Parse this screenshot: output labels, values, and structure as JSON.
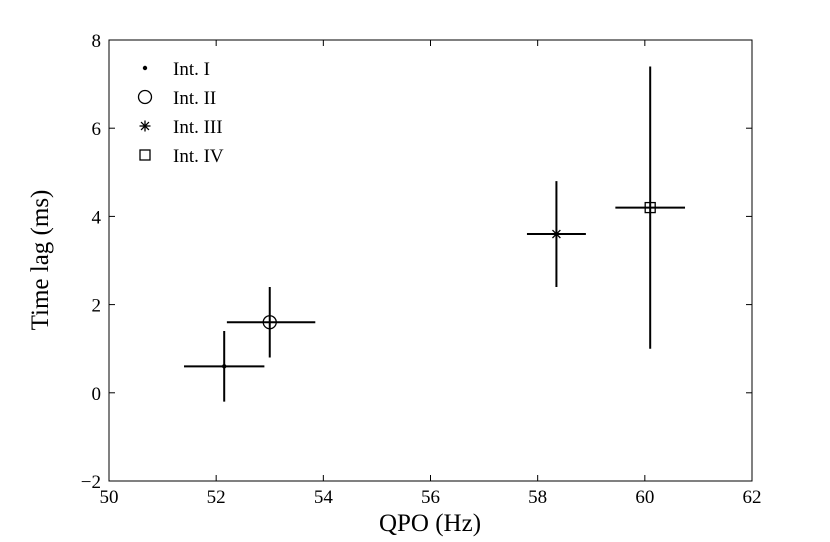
{
  "chart_data": {
    "type": "scatter",
    "title": "",
    "xlabel": "QPO (Hz)",
    "ylabel": "Time lag (ms)",
    "xlim": [
      50,
      62
    ],
    "ylim": [
      -2,
      8
    ],
    "x_ticks": [
      50,
      52,
      54,
      56,
      58,
      60,
      62
    ],
    "y_ticks": [
      -2,
      0,
      2,
      4,
      6,
      8
    ],
    "x_tick_labels": [
      "50",
      "52",
      "54",
      "56",
      "58",
      "60",
      "62"
    ],
    "y_tick_labels": [
      "−2",
      "0",
      "2",
      "4",
      "6",
      "8"
    ],
    "grid": false,
    "legend_position": "top-left",
    "series": [
      {
        "name": "Int. I",
        "marker": "dot",
        "color": "#000000",
        "points": [
          {
            "x": 52.15,
            "y": 0.6,
            "x_err": [
              0.75,
              0.75
            ],
            "y_err": [
              0.8,
              0.8
            ]
          }
        ]
      },
      {
        "name": "Int. II",
        "marker": "circle",
        "color": "#000000",
        "points": [
          {
            "x": 53.0,
            "y": 1.6,
            "x_err": [
              0.8,
              0.85
            ],
            "y_err": [
              0.8,
              0.8
            ]
          }
        ]
      },
      {
        "name": "Int. III",
        "marker": "asterisk",
        "color": "#000000",
        "points": [
          {
            "x": 58.35,
            "y": 3.6,
            "x_err": [
              0.55,
              0.55
            ],
            "y_err": [
              1.2,
              1.2
            ]
          }
        ]
      },
      {
        "name": "Int. IV",
        "marker": "square",
        "color": "#000000",
        "points": [
          {
            "x": 60.1,
            "y": 4.2,
            "x_err": [
              0.65,
              0.65
            ],
            "y_err": [
              3.2,
              3.2
            ]
          }
        ]
      }
    ]
  }
}
